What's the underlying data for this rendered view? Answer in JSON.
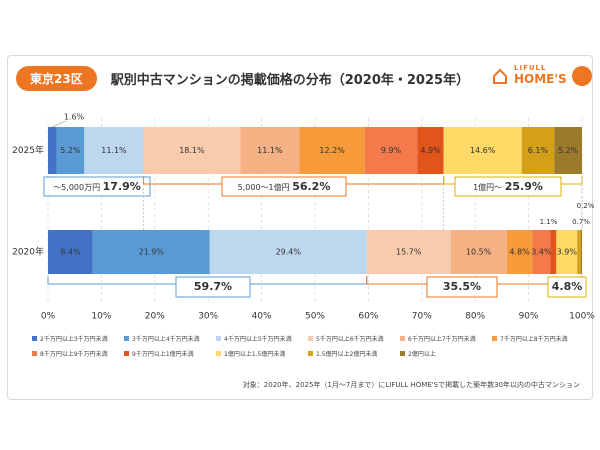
{
  "header": {
    "badge": "東京23区",
    "title": "駅別中古マンションの掲載価格の分布（2020年・2025年）"
  },
  "logo": {
    "small_text": "LIFULL",
    "big_text": "HOME'S"
  },
  "footnote": "対象：2020年、2025年（1月〜7月まで）にLIFULL HOME'Sで掲載した築年数30年以内の中古マンション",
  "chart_data": {
    "type": "bar",
    "orientation": "horizontal",
    "stacked": true,
    "categories": [
      "2025年",
      "2020年"
    ],
    "xlim": [
      0,
      100
    ],
    "xticks": [
      "0%",
      "10%",
      "20%",
      "30%",
      "40%",
      "50%",
      "60%",
      "70%",
      "80%",
      "90%",
      "100%"
    ],
    "series": [
      {
        "name": "2千万円以上3千万円未満",
        "color": "#4472c4",
        "values": [
          1.6,
          8.4
        ],
        "labels": [
          "1.6%",
          "8.4%"
        ]
      },
      {
        "name": "3千万円以上4千万円未満",
        "color": "#5b9bd5",
        "values": [
          5.2,
          21.9
        ],
        "labels": [
          "5.2%",
          "21.9%"
        ]
      },
      {
        "name": "4千万円以上5千万円未満",
        "color": "#bdd7ee",
        "values": [
          11.1,
          29.4
        ],
        "labels": [
          "11.1%",
          "29.4%"
        ]
      },
      {
        "name": "5千万円以上6千万円未満",
        "color": "#f8cbad",
        "values": [
          18.1,
          15.7
        ],
        "labels": [
          "18.1%",
          "15.7%"
        ]
      },
      {
        "name": "6千万円以上7千万円未満",
        "color": "#f4b183",
        "values": [
          11.1,
          10.5
        ],
        "labels": [
          "11.1%",
          "10.5%"
        ]
      },
      {
        "name": "7千万円以上8千万円未満",
        "color": "#f79a3a",
        "values": [
          12.2,
          4.8
        ],
        "labels": [
          "12.2%",
          "4.8%"
        ]
      },
      {
        "name": "8千万円以上9千万円未満",
        "color": "#f4794b",
        "values": [
          9.9,
          3.4
        ],
        "labels": [
          "9.9%",
          "3.4%"
        ]
      },
      {
        "name": "9千万円以上1億円未満",
        "color": "#e2551a",
        "values": [
          4.9,
          1.1
        ],
        "labels": [
          "4.9%",
          "1.1%"
        ]
      },
      {
        "name": "1億円以上1.5億円未満",
        "color": "#ffd966",
        "values": [
          14.6,
          3.9
        ],
        "labels": [
          "14.6%",
          "3.9%"
        ]
      },
      {
        "name": "1.5億円以上2億円未満",
        "color": "#d4a017",
        "values": [
          6.1,
          0.7
        ],
        "labels": [
          "6.1%",
          "0.7%"
        ]
      },
      {
        "name": "2億円以上",
        "color": "#9c7a2c",
        "values": [
          5.2,
          0.2
        ],
        "labels": [
          "5.2%",
          "0.2%"
        ]
      }
    ],
    "group_annotations": [
      {
        "row": "2025年",
        "label": "〜5,000万円",
        "value": "17.9%"
      },
      {
        "row": "2025年",
        "label": "5,000〜1億円",
        "value": "56.2%"
      },
      {
        "row": "2025年",
        "label": "1億円〜",
        "value": "25.9%"
      },
      {
        "row": "2020年",
        "label": "",
        "value": "59.7%"
      },
      {
        "row": "2020年",
        "label": "",
        "value": "35.5%"
      },
      {
        "row": "2020年",
        "label": "",
        "value": "4.8%"
      }
    ]
  }
}
